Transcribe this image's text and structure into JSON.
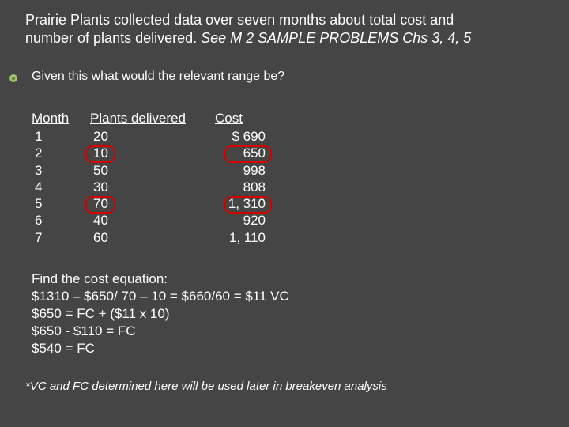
{
  "colors": {
    "background": "#454545",
    "text": "#ffffff",
    "ring": "#d40000",
    "bullet_outer": "#a2c66b",
    "bullet_inner": "#6a8a3c"
  },
  "title_line1": "Prairie Plants collected data over seven months about total cost and",
  "title_line2_plain": "number of plants delivered.  ",
  "title_line2_italic": "See M 2 SAMPLE PROBLEMS Chs 3, 4, 5",
  "subhead": "Given this what would the relevant range be?",
  "table": {
    "headers": {
      "month": "Month",
      "plants": "Plants delivered",
      "cost": "Cost"
    },
    "rows": [
      {
        "month": "1",
        "plants": "20",
        "cost": "$ 690",
        "ring_plants": false,
        "ring_cost": false
      },
      {
        "month": "2",
        "plants": "10",
        "cost": "650",
        "ring_plants": true,
        "ring_cost": true
      },
      {
        "month": "3",
        "plants": "50",
        "cost": "998",
        "ring_plants": false,
        "ring_cost": false
      },
      {
        "month": "4",
        "plants": "30",
        "cost": "808",
        "ring_plants": false,
        "ring_cost": false
      },
      {
        "month": "5",
        "plants": "70",
        "cost": "1, 310",
        "ring_plants": true,
        "ring_cost": true
      },
      {
        "month": "6",
        "plants": "40",
        "cost": "920",
        "ring_plants": false,
        "ring_cost": false
      },
      {
        "month": "7",
        "plants": "60",
        "cost": "1, 110",
        "ring_plants": false,
        "ring_cost": false
      }
    ]
  },
  "equations": [
    "Find the cost equation:",
    "$1310 – $650/ 70 – 10 = $660/60 = $11 VC",
    "$650 = FC + ($11 x 10)",
    "$650 - $110 = FC",
    "$540 = FC"
  ],
  "footnote": "*VC and FC determined here will be used later in breakeven analysis"
}
